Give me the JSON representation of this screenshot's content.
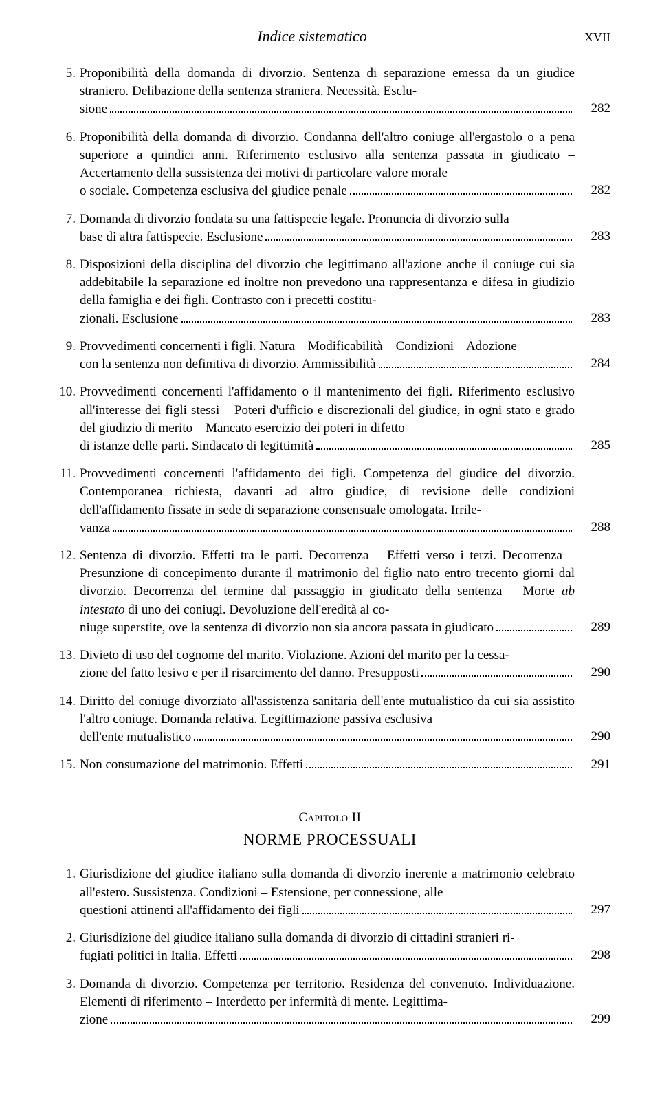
{
  "runningHead": {
    "title": "Indice sistematico",
    "pageRoman": "XVII"
  },
  "typography": {
    "fontFamily": "Times New Roman",
    "bodyFontSizePt": 14,
    "lineHeight": 1.38,
    "textColor": "#000000",
    "backgroundColor": "#ffffff"
  },
  "section1": {
    "entries": [
      {
        "num": "5.",
        "textMain": "Proponibilità della domanda di divorzio. Sentenza di separazione emessa da un giudice straniero. Delibazione della sentenza straniera. Necessità. Esclu-",
        "textLast": "sione",
        "page": "282"
      },
      {
        "num": "6.",
        "textMain": "Proponibilità della domanda di divorzio. Condanna dell'altro coniuge all'ergastolo o a pena superiore a quindici anni. Riferimento esclusivo alla sentenza passata in giudicato – Accertamento della sussistenza dei motivi di particolare valore morale",
        "textLast": "o sociale. Competenza esclusiva del giudice penale",
        "page": "282"
      },
      {
        "num": "7.",
        "textMain": "Domanda di divorzio fondata su una fattispecie legale. Pronuncia di divorzio sulla",
        "textLast": "base di altra fattispecie. Esclusione",
        "page": "283"
      },
      {
        "num": "8.",
        "textMain": "Disposizioni della disciplina del divorzio che legittimano all'azione anche il coniuge cui sia addebitabile la separazione ed inoltre non prevedono una rappresentanza e difesa in giudizio della famiglia e dei figli. Contrasto con i precetti costitu-",
        "textLast": "zionali. Esclusione",
        "page": "283"
      },
      {
        "num": "9.",
        "textMain": "Provvedimenti concernenti i figli. Natura – Modificabilità – Condizioni – Adozione",
        "textLast": "con la sentenza non definitiva di divorzio. Ammissibilità",
        "page": "284"
      },
      {
        "num": "10.",
        "textMain": "Provvedimenti concernenti l'affidamento o il mantenimento dei figli. Riferimento esclusivo all'interesse dei figli stessi – Poteri d'ufficio e discrezionali del giudice, in ogni stato e grado del giudizio di merito – Mancato esercizio dei poteri in difetto",
        "textLast": "di istanze delle parti. Sindacato di legittimità",
        "page": "285"
      },
      {
        "num": "11.",
        "textMain": "Provvedimenti concernenti l'affidamento dei figli. Competenza del giudice del divorzio. Contemporanea richiesta, davanti ad altro giudice, di revisione delle condizioni dell'affidamento fissate in sede di separazione consensuale omologata. Irrile-",
        "textLast": "vanza",
        "page": "288"
      },
      {
        "num": "12.",
        "textMain": "",
        "textMainHtml": "Sentenza di divorzio. Effetti tra le parti. Decorrenza – Effetti verso i terzi. Decorrenza – Presunzione di concepimento durante il matrimonio del figlio nato entro trecento giorni dal divorzio. Decorrenza del termine dal passaggio in giudicato della sentenza – Morte <em class=\"ital\">ab intestato</em> di uno dei coniugi. Devoluzione dell'eredità al co-",
        "textLast": "niuge superstite, ove la sentenza di divorzio non sia ancora passata in giudicato",
        "page": "289"
      },
      {
        "num": "13.",
        "textMain": "Divieto di uso del cognome del marito. Violazione. Azioni del marito per la cessa-",
        "textLast": "zione del fatto lesivo e per il risarcimento del danno. Presupposti",
        "page": "290"
      },
      {
        "num": "14.",
        "textMain": "Diritto del coniuge divorziato all'assistenza sanitaria dell'ente mutualistico da cui sia assistito l'altro coniuge. Domanda relativa. Legittimazione passiva esclusiva",
        "textLast": "dell'ente mutualistico",
        "page": "290"
      },
      {
        "num": "15.",
        "textMain": "",
        "textLast": "Non consumazione del matrimonio. Effetti",
        "page": "291"
      }
    ]
  },
  "chapter": {
    "label": "Capitolo II",
    "title": "NORME PROCESSUALI"
  },
  "section2": {
    "entries": [
      {
        "num": "1.",
        "textMain": "Giurisdizione del giudice italiano sulla domanda di divorzio inerente a matrimonio celebrato all'estero. Sussistenza. Condizioni – Estensione, per connessione, alle",
        "textLast": "questioni attinenti all'affidamento dei figli",
        "page": "297"
      },
      {
        "num": "2.",
        "textMain": "Giurisdizione del giudice italiano sulla domanda di divorzio di cittadini stranieri ri-",
        "textLast": "fugiati politici in Italia. Effetti",
        "page": "298"
      },
      {
        "num": "3.",
        "textMain": "Domanda di divorzio. Competenza per territorio. Residenza del convenuto. Individuazione. Elementi di riferimento – Interdetto per infermità di mente. Legittima-",
        "textLast": "zione",
        "page": "299"
      }
    ]
  }
}
